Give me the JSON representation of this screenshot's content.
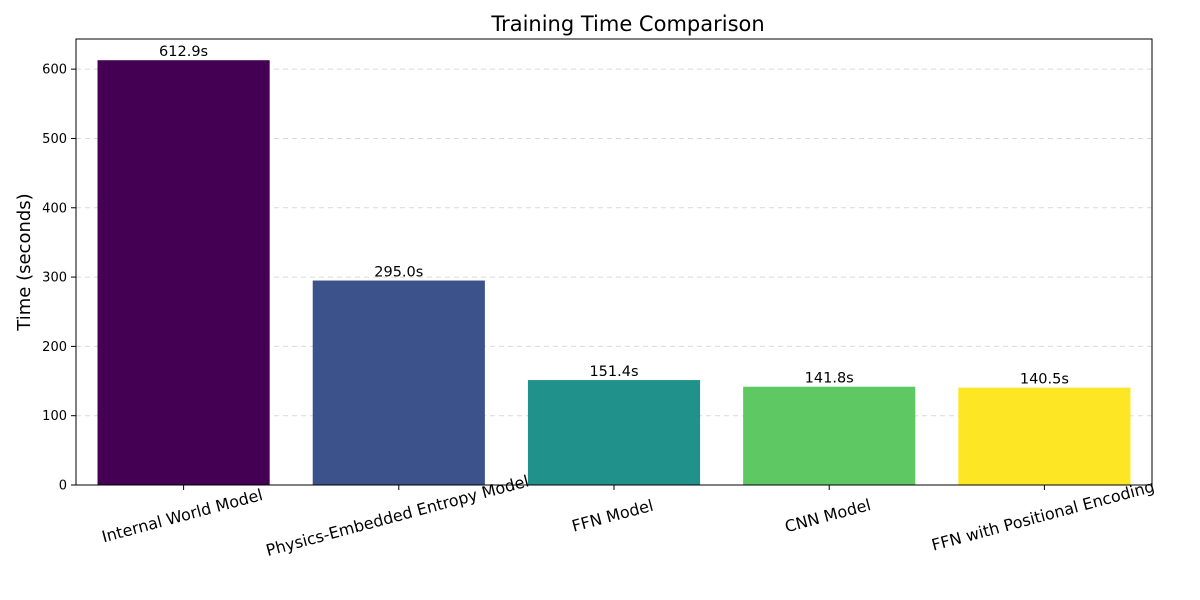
{
  "chart_data": {
    "type": "bar",
    "title": "Training Time Comparison",
    "xlabel": "",
    "ylabel": "Time (seconds)",
    "categories": [
      "Internal World Model",
      "Physics-Embedded Entropy Model",
      "FFN Model",
      "CNN Model",
      "FFN with Positional Encoding"
    ],
    "values": [
      612.9,
      295.0,
      151.4,
      141.8,
      140.5
    ],
    "data_labels": [
      "612.9s",
      "295.0s",
      "151.4s",
      "141.8s",
      "140.5s"
    ],
    "colors": [
      "#440154",
      "#3b528b",
      "#21918c",
      "#5ec962",
      "#fde725"
    ],
    "ylim": [
      0,
      643.5
    ],
    "yticks": [
      0,
      100,
      200,
      300,
      400,
      500,
      600
    ],
    "xtick_rotation_deg": 15,
    "grid": "y-dashed",
    "legend": "none"
  }
}
